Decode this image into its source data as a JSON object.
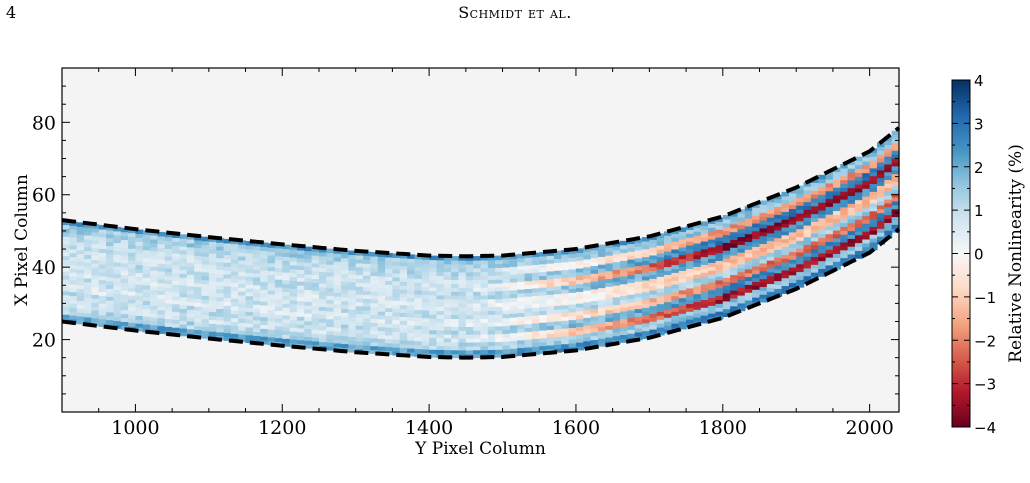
{
  "header": {
    "page_number": "4",
    "running_head": "Schmidt et al."
  },
  "chart_data": {
    "type": "heatmap",
    "xlabel": "Y Pixel Column",
    "ylabel": "X Pixel Column",
    "xlim": [
      900,
      2040
    ],
    "ylim": [
      0,
      95
    ],
    "x_ticks": [
      1000,
      1200,
      1400,
      1600,
      1800,
      2000
    ],
    "y_ticks": [
      20,
      40,
      60,
      80
    ],
    "grid": false,
    "background_color": "#f4f4f4",
    "colorbar": {
      "label": "Relative Nonlinearity (%)",
      "range": [
        -4,
        4
      ],
      "ticks": [
        4,
        3,
        2,
        1,
        0,
        -1,
        -2,
        -3,
        -4
      ],
      "tick_labels": [
        "4",
        "3",
        "2",
        "1",
        "0",
        "−1",
        "−2",
        "−3",
        "−4"
      ],
      "colormap": "RdBu",
      "colors": [
        "#67001f",
        "#b2182b",
        "#d6604d",
        "#f4a582",
        "#fddbc7",
        "#f7f7f7",
        "#d1e5f0",
        "#92c5de",
        "#4393c3",
        "#2166ac",
        "#053061"
      ]
    },
    "boundary_curves": [
      {
        "style": "dashed-black",
        "x": [
          900,
          1000,
          1100,
          1200,
          1300,
          1400,
          1450,
          1500,
          1600,
          1700,
          1800,
          1900,
          1950,
          2000,
          2040
        ],
        "y": [
          53,
          50.5,
          48.3,
          46.3,
          44.5,
          43.2,
          43,
          43.2,
          45,
          48.5,
          54,
          62,
          67,
          72,
          78.5
        ]
      },
      {
        "style": "dashed-black",
        "x": [
          900,
          1000,
          1100,
          1200,
          1300,
          1400,
          1450,
          1500,
          1600,
          1700,
          1800,
          1900,
          1950,
          2000,
          2040
        ],
        "y": [
          25,
          22.5,
          20.3,
          18.3,
          16.5,
          15.2,
          15,
          15.2,
          17,
          20.5,
          26,
          34,
          39,
          44,
          50.5
        ]
      }
    ],
    "stripe_profile": {
      "description": "relative offsets (0=lower edge, 1=upper edge) and signed nonlinearity in % for stripes across the trace; left side mostly positive, right side alternating bands",
      "offsets": [
        0.04,
        0.12,
        0.2,
        0.28,
        0.36,
        0.44,
        0.52,
        0.6,
        0.68,
        0.76,
        0.84,
        0.92,
        0.97
      ],
      "left_values": [
        2.2,
        1.2,
        0.8,
        1.0,
        0.6,
        0.9,
        0.7,
        1.0,
        0.8,
        0.9,
        1.1,
        1.4,
        2.4
      ],
      "right_values": [
        2.8,
        1.6,
        -3.4,
        2.6,
        -2.2,
        1.4,
        -1.2,
        2.4,
        -3.6,
        2.8,
        -1.8,
        1.6,
        2.2
      ]
    }
  }
}
